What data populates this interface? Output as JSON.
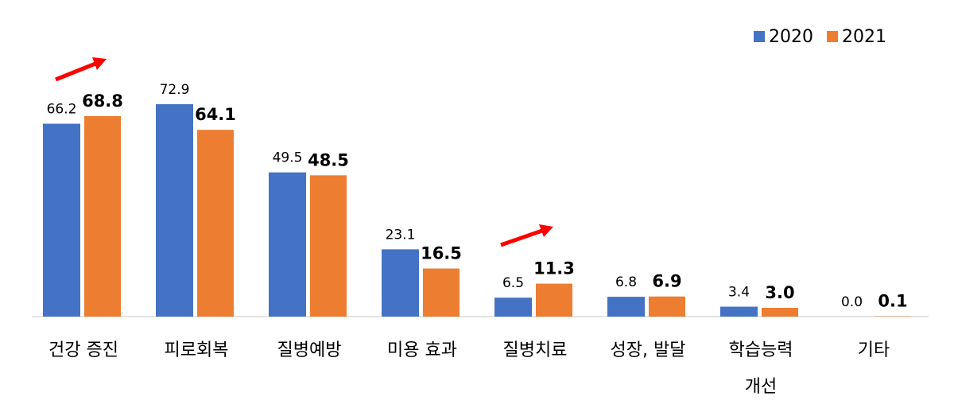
{
  "chart_data": {
    "type": "bar",
    "categories": [
      "건강 증진",
      "피로회복",
      "질병예방",
      "미용 효과",
      "질병치료",
      "성장, 발달",
      "학습능력\n개선",
      "기타"
    ],
    "series": [
      {
        "name": "2020",
        "color": "#4472c4",
        "values": [
          66.2,
          72.9,
          49.5,
          23.1,
          6.5,
          6.8,
          3.4,
          0.0
        ],
        "value_labels": [
          "66.2",
          "72.9",
          "49.5",
          "23.1",
          "6.5",
          "6.8",
          "3.4",
          "0.0"
        ]
      },
      {
        "name": "2021",
        "color": "#ed7d31",
        "values": [
          68.8,
          64.1,
          48.5,
          16.5,
          11.3,
          6.9,
          3.0,
          0.1
        ],
        "value_labels": [
          "68.8",
          "64.1",
          "48.5",
          "16.5",
          "11.3",
          "6.9",
          "3.0",
          "0.1"
        ]
      }
    ]
  }
}
